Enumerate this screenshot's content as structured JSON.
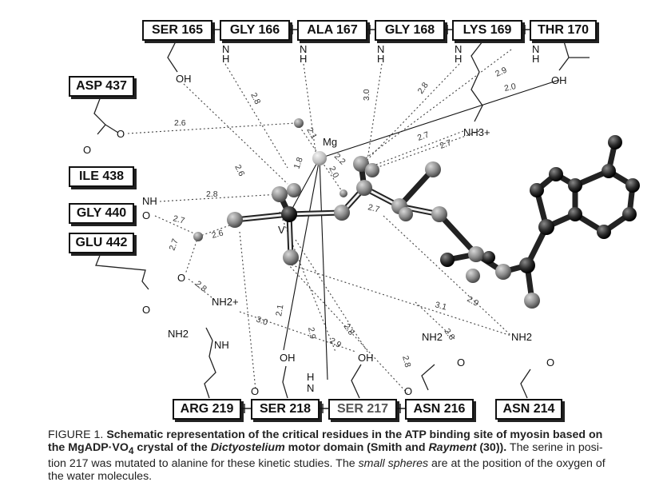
{
  "residues": {
    "ser165": "SER 165",
    "gly166": "GLY 166",
    "ala167": "ALA 167",
    "gly168": "GLY 168",
    "lys169": "LYS 169",
    "thr170": "THR 170",
    "asp437": "ASP 437",
    "ile438": "ILE 438",
    "gly440": "GLY 440",
    "glu442": "GLU 442",
    "arg219": "ARG 219",
    "ser218": "SER 218",
    "ser217": "SER 217",
    "asn216": "ASN 216",
    "asn214": "ASN 214"
  },
  "atoms": {
    "oh": "OH",
    "n": "N",
    "h": "H",
    "o": "O",
    "nh": "NH",
    "mg": "Mg",
    "v": "V",
    "nh3": "NH3+",
    "nh2": "NH2",
    "nh2_plus": "NH2+"
  },
  "distances": [
    "2.8",
    "3.0",
    "2.8",
    "2.9",
    "2.0",
    "2.6",
    "2.1",
    "2.2",
    "2.7",
    "2.7",
    "1.8",
    "2.0",
    "2.6",
    "2.8",
    "2.7",
    "2.7",
    "2.6",
    "2.8",
    "3.0",
    "2.1",
    "2.9",
    "2.8",
    "2.9",
    "2.7",
    "2.8",
    "3.1",
    "2.9",
    "2.8"
  ],
  "caption": {
    "label": "FIGURE 1.",
    "bold_line_1": "Schematic representation of the critical residues in the ATP binding site of myosin based on",
    "bold_line_2a": "the MgADP·VO",
    "bold_sub": "4",
    "bold_line_2b": " crystal of the ",
    "bold_italic": "Dictyostelium",
    "bold_line_2c": " motor domain (Smith and ",
    "bold_italic_2": "Rayment",
    "bold_line_2d": " (30)).",
    "text_1": " The serine in posi-",
    "text_2": "tion 217 was mutated to alanine for these kinetic studies. The ",
    "italic": "small spheres",
    "text_3": " are at the position of the oxygen of",
    "text_4": "the water molecules."
  }
}
